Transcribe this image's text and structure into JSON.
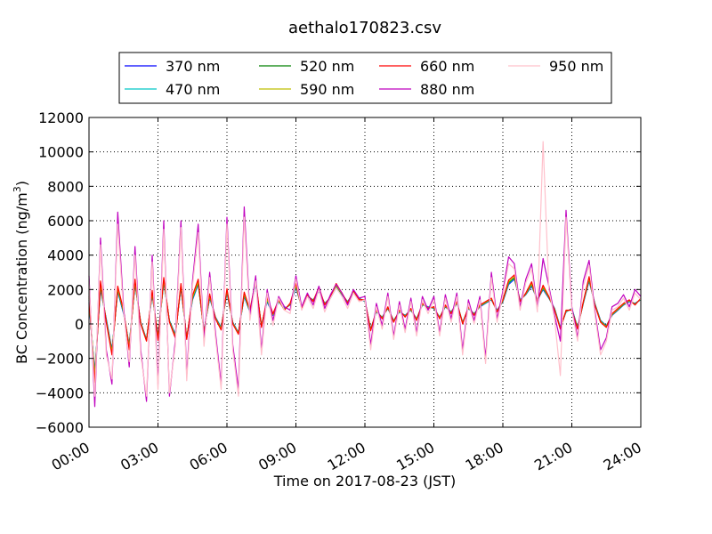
{
  "chart_data": {
    "type": "line",
    "title": "aethalo170823.csv",
    "xlabel": "Time on 2017-08-23 (JST)",
    "ylabel_main": "BC Concentration (ng/m",
    "ylabel_sup": "3",
    "ylabel_tail": ")",
    "xlim": [
      0,
      24
    ],
    "ylim": [
      -6000,
      12000
    ],
    "xticks": [
      {
        "value": 0,
        "label": "00:00"
      },
      {
        "value": 3,
        "label": "03:00"
      },
      {
        "value": 6,
        "label": "06:00"
      },
      {
        "value": 9,
        "label": "09:00"
      },
      {
        "value": 12,
        "label": "12:00"
      },
      {
        "value": 15,
        "label": "15:00"
      },
      {
        "value": 18,
        "label": "18:00"
      },
      {
        "value": 21,
        "label": "21:00"
      },
      {
        "value": 24,
        "label": "24:00"
      }
    ],
    "yticks": [
      {
        "value": -6000,
        "label": "−6000"
      },
      {
        "value": -4000,
        "label": "−4000"
      },
      {
        "value": -2000,
        "label": "−2000"
      },
      {
        "value": 0,
        "label": "0"
      },
      {
        "value": 2000,
        "label": "2000"
      },
      {
        "value": 4000,
        "label": "4000"
      },
      {
        "value": 6000,
        "label": "6000"
      },
      {
        "value": 8000,
        "label": "8000"
      },
      {
        "value": 10000,
        "label": "10000"
      },
      {
        "value": 12000,
        "label": "12000"
      }
    ],
    "grid": true,
    "legend_position": "top",
    "x": [
      0.0,
      0.25,
      0.5,
      0.75,
      1.0,
      1.25,
      1.5,
      1.75,
      2.0,
      2.25,
      2.5,
      2.75,
      3.0,
      3.25,
      3.5,
      3.75,
      4.0,
      4.25,
      4.5,
      4.75,
      5.0,
      5.25,
      5.5,
      5.75,
      6.0,
      6.25,
      6.5,
      6.75,
      7.0,
      7.25,
      7.5,
      7.75,
      8.0,
      8.25,
      8.5,
      8.75,
      9.0,
      9.25,
      9.5,
      9.75,
      10.0,
      10.25,
      10.5,
      10.75,
      11.0,
      11.25,
      11.5,
      11.75,
      12.0,
      12.25,
      12.5,
      12.75,
      13.0,
      13.25,
      13.5,
      13.75,
      14.0,
      14.25,
      14.5,
      14.75,
      15.0,
      15.25,
      15.5,
      15.75,
      16.0,
      16.25,
      16.5,
      16.75,
      17.0,
      17.25,
      17.5,
      17.75,
      18.0,
      18.25,
      18.5,
      18.75,
      19.0,
      19.25,
      19.5,
      19.75,
      20.0,
      20.25,
      20.5,
      20.75,
      21.0,
      21.25,
      21.5,
      21.75,
      22.0,
      22.25,
      22.5,
      22.75,
      23.0,
      23.25,
      23.5,
      23.75,
      24.0
    ],
    "series": [
      {
        "name": "370 nm",
        "color": "#0000ff",
        "values": [
          1200,
          -2800,
          2000,
          300,
          -1500,
          1900,
          600,
          -1200,
          2300,
          100,
          -900,
          1700,
          -700,
          2400,
          200,
          -600,
          2100,
          -800,
          1400,
          2300,
          -400,
          1500,
          400,
          -200,
          1800,
          100,
          -500,
          1600,
          700,
          2300,
          -100,
          1300,
          500,
          1300,
          900,
          1100,
          2100,
          1000,
          1600,
          1400,
          1900,
          1200,
          1500,
          2100,
          1700,
          1300,
          1800,
          1500,
          1300,
          -300,
          700,
          400,
          900,
          200,
          700,
          500,
          800,
          300,
          1100,
          1000,
          900,
          400,
          1000,
          700,
          1200,
          100,
          900,
          600,
          1000,
          1200,
          1400,
          800,
          1300,
          2300,
          2600,
          1400,
          1700,
          2200,
          1400,
          2000,
          1500,
          900,
          -200,
          700,
          900,
          -200,
          1200,
          2500,
          1200,
          200,
          -100,
          500,
          800,
          1100,
          1300,
          1200,
          1400
        ]
      },
      {
        "name": "470 nm",
        "color": "#00c8c8",
        "values": [
          1300,
          -2900,
          2100,
          250,
          -1550,
          1950,
          650,
          -1250,
          2350,
          80,
          -920,
          1750,
          -750,
          2450,
          180,
          -640,
          2150,
          -820,
          1450,
          2350,
          -420,
          1550,
          380,
          -230,
          1850,
          80,
          -520,
          1650,
          720,
          2350,
          -120,
          1350,
          520,
          1320,
          880,
          1120,
          2150,
          980,
          1620,
          1380,
          1950,
          1180,
          1520,
          2150,
          1720,
          1280,
          1830,
          1480,
          1320,
          -320,
          720,
          380,
          920,
          180,
          720,
          480,
          820,
          280,
          1120,
          980,
          920,
          380,
          1020,
          680,
          1220,
          80,
          920,
          580,
          1020,
          1220,
          1420,
          780,
          1320,
          2350,
          2650,
          1380,
          1720,
          2250,
          1380,
          2050,
          1520,
          880,
          -220,
          720,
          880,
          -220,
          1220,
          2550,
          1180,
          180,
          -120,
          520,
          820,
          1120,
          1320,
          1180,
          1420
        ]
      },
      {
        "name": "520 nm",
        "color": "#008000",
        "values": [
          1400,
          -3000,
          2200,
          200,
          -1600,
          2000,
          700,
          -1300,
          2400,
          60,
          -940,
          1800,
          -800,
          2500,
          160,
          -680,
          2200,
          -840,
          1500,
          2400,
          -440,
          1600,
          360,
          -260,
          1900,
          60,
          -540,
          1700,
          740,
          2400,
          -140,
          1400,
          540,
          1340,
          860,
          1140,
          2200,
          960,
          1640,
          1360,
          2000,
          1160,
          1540,
          2200,
          1740,
          1260,
          1860,
          1460,
          1340,
          -340,
          740,
          360,
          940,
          160,
          740,
          460,
          840,
          260,
          1140,
          960,
          940,
          360,
          1040,
          660,
          1240,
          60,
          940,
          560,
          1040,
          1240,
          1440,
          760,
          1340,
          2400,
          2700,
          1360,
          1740,
          2300,
          1360,
          2100,
          1540,
          860,
          -240,
          740,
          860,
          -240,
          1240,
          2600,
          1160,
          160,
          -140,
          540,
          840,
          1140,
          1340,
          1160,
          1440
        ]
      },
      {
        "name": "590 nm",
        "color": "#bfbf00",
        "values": [
          1500,
          -3100,
          2300,
          150,
          -1650,
          2050,
          750,
          -1350,
          2450,
          40,
          -960,
          1850,
          -850,
          2550,
          140,
          -720,
          2250,
          -860,
          1550,
          2450,
          -460,
          1650,
          340,
          -290,
          1950,
          40,
          -560,
          1750,
          760,
          2450,
          -160,
          1450,
          560,
          1360,
          840,
          1160,
          2250,
          940,
          1660,
          1340,
          2050,
          1140,
          1560,
          2250,
          1760,
          1240,
          1890,
          1440,
          1360,
          -360,
          760,
          340,
          960,
          140,
          760,
          440,
          860,
          240,
          1160,
          940,
          960,
          340,
          1060,
          640,
          1260,
          40,
          960,
          540,
          1060,
          1260,
          1460,
          740,
          1360,
          2450,
          2750,
          1340,
          1760,
          2350,
          1340,
          2150,
          1560,
          840,
          -260,
          760,
          840,
          -260,
          1260,
          2650,
          1140,
          140,
          -160,
          560,
          860,
          1160,
          1360,
          1140,
          1460
        ]
      },
      {
        "name": "660 nm",
        "color": "#ff0000",
        "values": [
          1600,
          -3400,
          2500,
          100,
          -1800,
          2200,
          800,
          -1500,
          2600,
          0,
          -1000,
          1950,
          -950,
          2700,
          100,
          -800,
          2350,
          -900,
          1650,
          2600,
          -500,
          1750,
          300,
          -350,
          2050,
          0,
          -600,
          1850,
          800,
          2550,
          -200,
          1550,
          600,
          1400,
          800,
          1200,
          2350,
          900,
          1700,
          1300,
          2150,
          1100,
          1600,
          2350,
          1800,
          1200,
          1950,
          1400,
          1400,
          -400,
          800,
          300,
          1000,
          100,
          800,
          400,
          900,
          200,
          1200,
          900,
          1000,
          300,
          1100,
          600,
          1300,
          0,
          1000,
          500,
          1100,
          1300,
          1500,
          700,
          1400,
          2550,
          2850,
          1300,
          1800,
          2450,
          1300,
          2250,
          1600,
          800,
          -300,
          800,
          800,
          -300,
          1300,
          2750,
          1100,
          100,
          -200,
          600,
          900,
          1200,
          1400,
          1100,
          1500
        ]
      },
      {
        "name": "880 nm",
        "color": "#bf00bf",
        "values": [
          2800,
          -4800,
          5000,
          -1500,
          -3500,
          6500,
          1000,
          -2500,
          4500,
          -1500,
          -4500,
          4000,
          -3500,
          6000,
          -4200,
          -1000,
          6000,
          -3000,
          2500,
          5800,
          -1000,
          3000,
          -500,
          -3500,
          6200,
          -1200,
          -3800,
          6800,
          500,
          2800,
          -1500,
          2000,
          200,
          1600,
          1000,
          800,
          2800,
          1000,
          1800,
          1100,
          2200,
          900,
          1700,
          2300,
          1800,
          1100,
          2000,
          1500,
          1600,
          -1200,
          1200,
          -100,
          1800,
          -700,
          1300,
          -300,
          1500,
          -500,
          1600,
          800,
          1600,
          -500,
          1700,
          300,
          1800,
          -1500,
          1400,
          200,
          1600,
          -2000,
          3000,
          300,
          1900,
          3900,
          3500,
          1000,
          2600,
          3500,
          900,
          3800,
          2200,
          500,
          -1000,
          6600,
          1000,
          -800,
          2500,
          3700,
          800,
          -1500,
          -800,
          1000,
          1200,
          1700,
          1000,
          2000,
          1600
        ]
      },
      {
        "name": "950 nm",
        "color": "#ffc0cb",
        "values": [
          2500,
          -4200,
          4600,
          -1800,
          -3200,
          5800,
          700,
          -2200,
          4000,
          -1800,
          -4200,
          3600,
          -3800,
          5500,
          -4000,
          -1300,
          5600,
          -3300,
          2200,
          5300,
          -1300,
          2700,
          -800,
          -3800,
          5800,
          -1500,
          -4200,
          6200,
          200,
          2500,
          -1800,
          1800,
          -100,
          1500,
          800,
          600,
          2600,
          800,
          1600,
          900,
          2000,
          700,
          1500,
          2100,
          1600,
          900,
          1800,
          1300,
          1400,
          -1500,
          1000,
          -300,
          1600,
          -900,
          1100,
          -500,
          1300,
          -700,
          1400,
          600,
          1400,
          -700,
          1500,
          100,
          1600,
          -1800,
          1200,
          0,
          1400,
          -2300,
          2700,
          100,
          1700,
          3500,
          3200,
          800,
          2400,
          3200,
          700,
          10600,
          2000,
          300,
          -3000,
          6200,
          800,
          -1000,
          2200,
          3400,
          600,
          -1800,
          -1000,
          800,
          1000,
          1500,
          800,
          1800,
          1400
        ]
      }
    ]
  }
}
